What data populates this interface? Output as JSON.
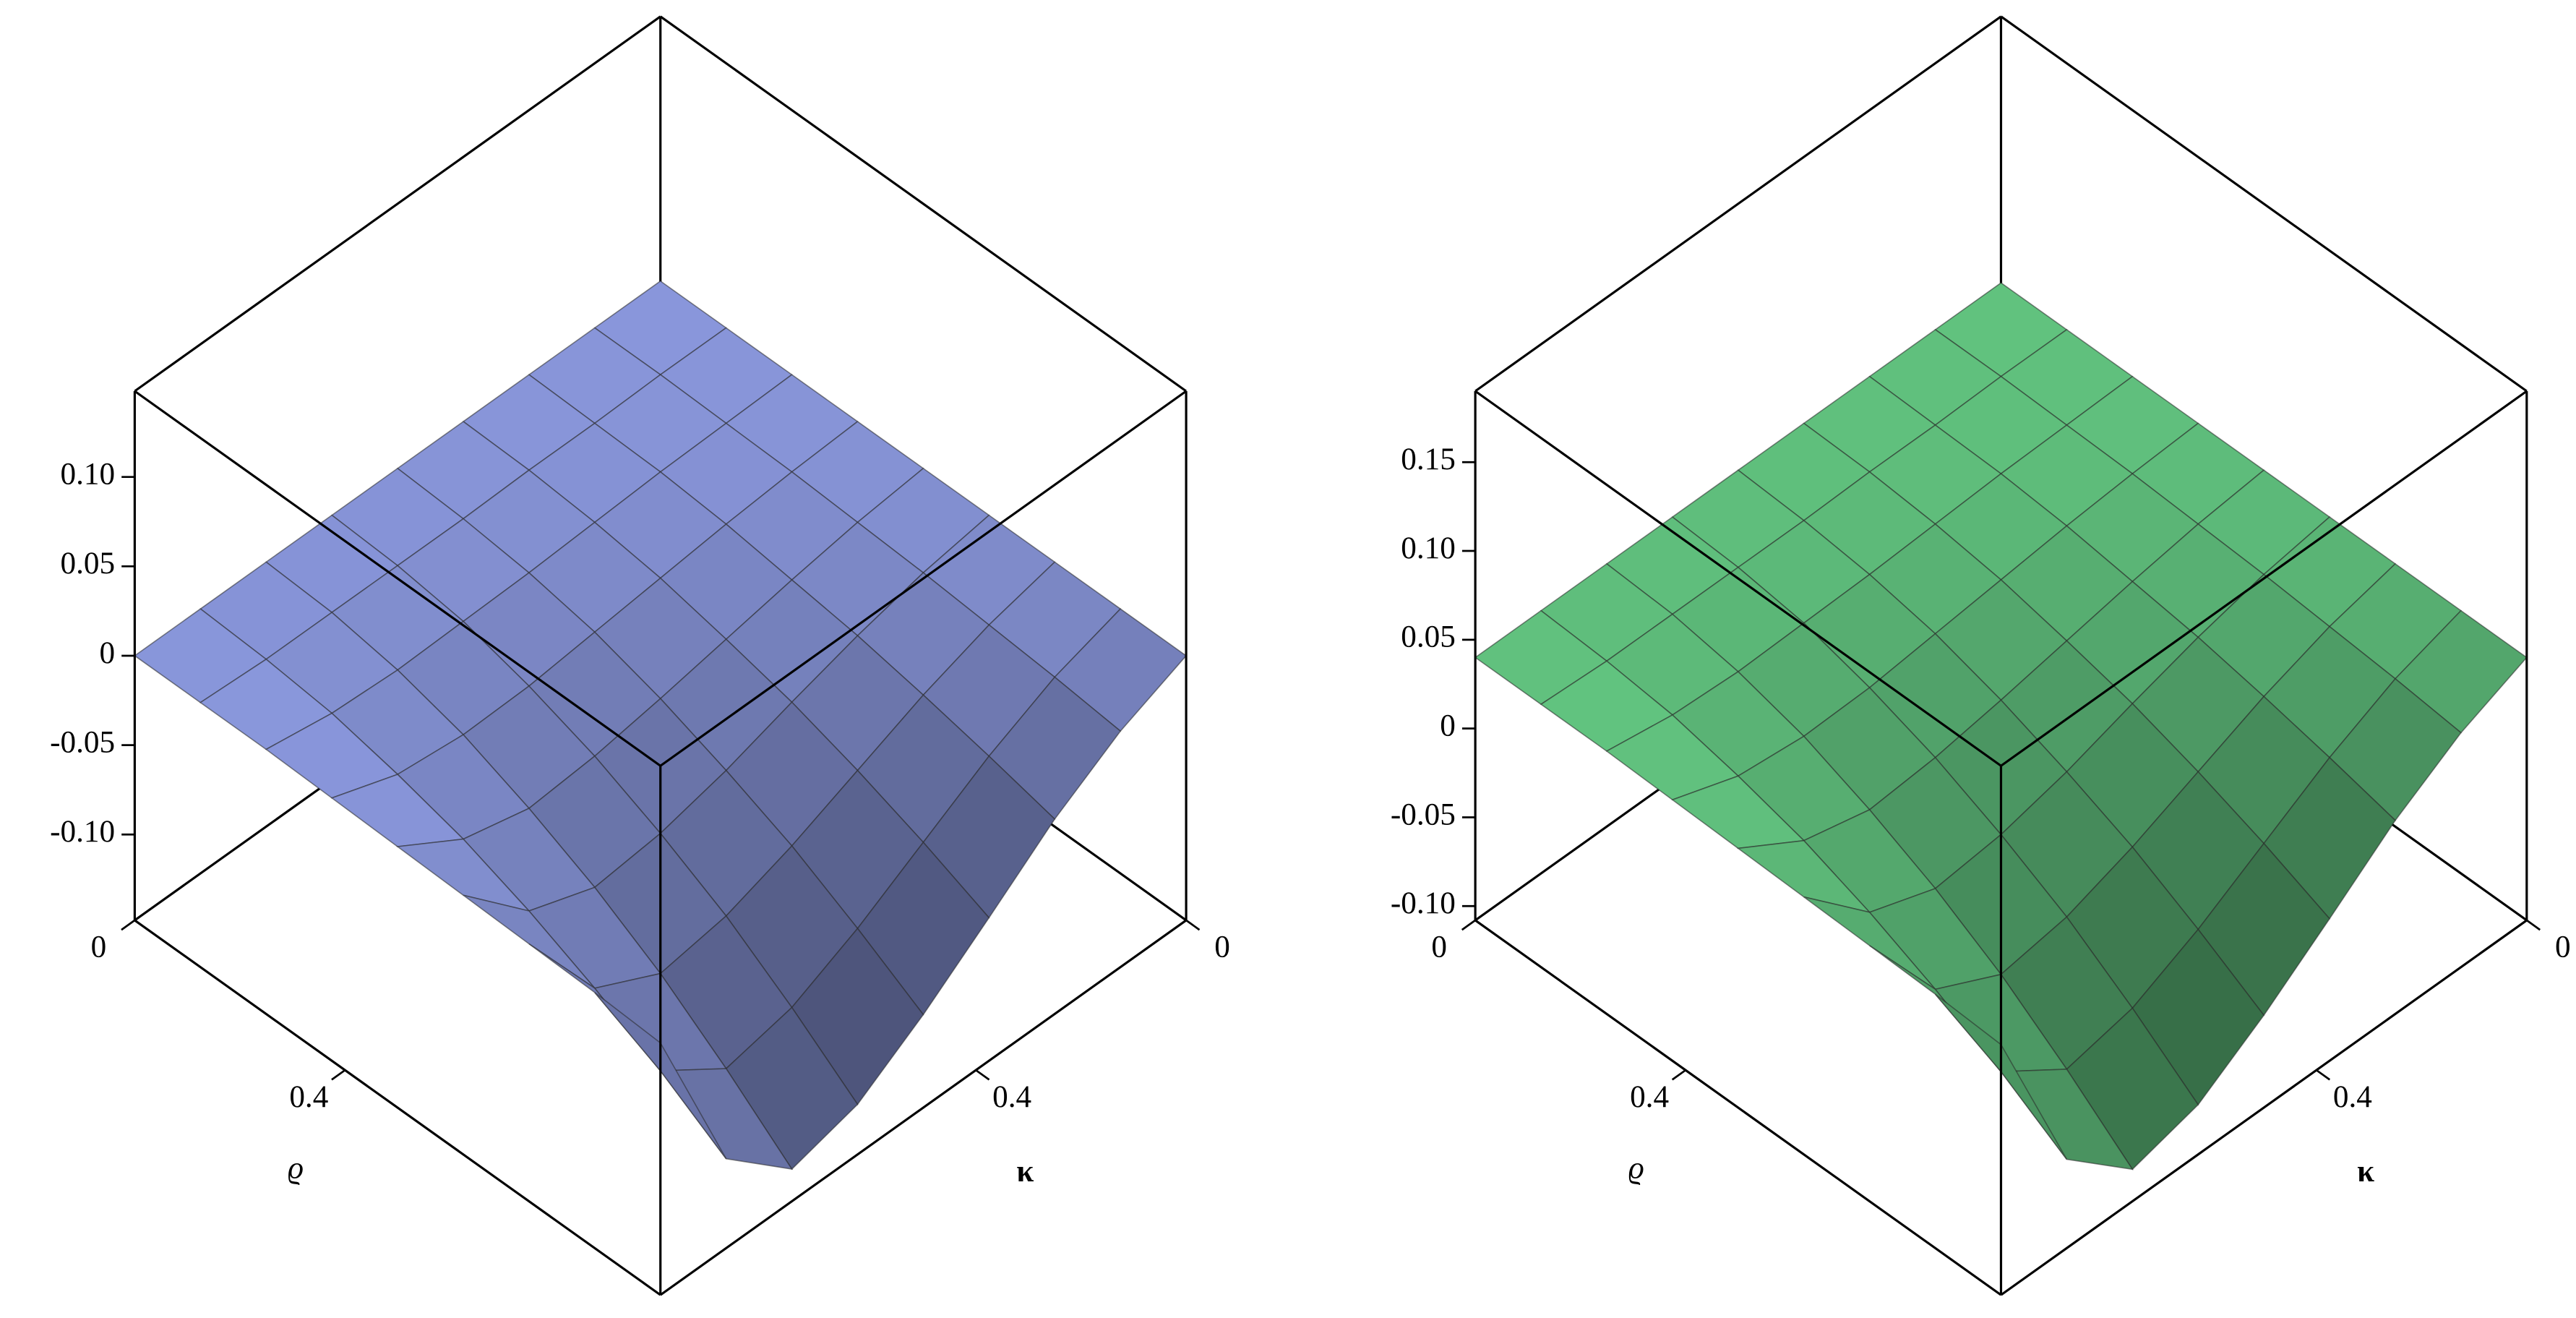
{
  "chart_data": [
    {
      "type": "surface",
      "xlabel": "ϱ",
      "ylabel": "κ",
      "color": "#909ee6",
      "x": [
        0,
        0.125,
        0.25,
        0.375,
        0.5,
        0.625,
        0.75,
        0.875,
        1
      ],
      "y": [
        0,
        0.125,
        0.25,
        0.375,
        0.5,
        0.625,
        0.75,
        0.875,
        1
      ],
      "z": [
        [
          0,
          0,
          0,
          0,
          0,
          0,
          0,
          0,
          0
        ],
        [
          0,
          0,
          -0.001,
          -0.001,
          -0.002,
          -0.002,
          -0.002,
          -0.002,
          0
        ],
        [
          0,
          -0.001,
          -0.002,
          -0.004,
          -0.006,
          -0.007,
          -0.008,
          -0.006,
          0
        ],
        [
          0,
          -0.002,
          -0.005,
          -0.009,
          -0.013,
          -0.017,
          -0.018,
          -0.014,
          -0.001
        ],
        [
          0,
          -0.004,
          -0.01,
          -0.017,
          -0.024,
          -0.03,
          -0.033,
          -0.024,
          -0.002
        ],
        [
          0,
          -0.006,
          -0.015,
          -0.026,
          -0.038,
          -0.047,
          -0.051,
          -0.038,
          -0.003
        ],
        [
          0,
          -0.009,
          -0.022,
          -0.038,
          -0.054,
          -0.067,
          -0.073,
          -0.055,
          -0.004
        ],
        [
          0,
          -0.012,
          -0.03,
          -0.052,
          -0.074,
          -0.092,
          -0.1,
          -0.075,
          -0.005
        ],
        [
          0,
          -0.016,
          -0.039,
          -0.068,
          -0.096,
          -0.12,
          -0.13,
          -0.098,
          -0.007
        ]
      ],
      "xlim": [
        0,
        1
      ],
      "ylim": [
        0,
        1
      ],
      "zlim": [
        -0.148,
        0.148
      ],
      "xticks": [
        0,
        0.4
      ],
      "yticks": [
        0,
        0.4
      ],
      "zticks": [
        {
          "value": 0.1,
          "label": "0.10"
        },
        0.05,
        0,
        -0.05,
        {
          "value": -0.1,
          "label": "-0.10"
        }
      ]
    },
    {
      "type": "surface",
      "xlabel": "ϱ",
      "ylabel": "κ",
      "color": "#66cc85",
      "x": [
        0,
        0.125,
        0.25,
        0.375,
        0.5,
        0.625,
        0.75,
        0.875,
        1
      ],
      "y": [
        0,
        0.125,
        0.25,
        0.375,
        0.5,
        0.625,
        0.75,
        0.875,
        1
      ],
      "z": [
        [
          0.04,
          0.04,
          0.04,
          0.04,
          0.04,
          0.04,
          0.04,
          0.04,
          0.04
        ],
        [
          0.04,
          0.04,
          0.039,
          0.039,
          0.038,
          0.038,
          0.038,
          0.038,
          0.04
        ],
        [
          0.04,
          0.039,
          0.038,
          0.036,
          0.034,
          0.033,
          0.032,
          0.034,
          0.04
        ],
        [
          0.04,
          0.038,
          0.035,
          0.031,
          0.027,
          0.023,
          0.022,
          0.026,
          0.039
        ],
        [
          0.04,
          0.036,
          0.03,
          0.023,
          0.016,
          0.01,
          0.007,
          0.016,
          0.038
        ],
        [
          0.04,
          0.034,
          0.025,
          0.014,
          0.002,
          -0.007,
          -0.011,
          0.002,
          0.037
        ],
        [
          0.04,
          0.031,
          0.018,
          0.002,
          -0.014,
          -0.027,
          -0.033,
          -0.015,
          0.036
        ],
        [
          0.04,
          0.028,
          0.01,
          -0.012,
          -0.034,
          -0.052,
          -0.06,
          -0.035,
          0.035
        ],
        [
          0.04,
          0.024,
          0.001,
          -0.028,
          -0.056,
          -0.08,
          -0.09,
          -0.058,
          0.033
        ]
      ],
      "xlim": [
        0,
        1
      ],
      "ylim": [
        0,
        1
      ],
      "zlim": [
        -0.108,
        0.19
      ],
      "xticks": [
        0,
        0.4
      ],
      "yticks": [
        0,
        0.4
      ],
      "zticks": [
        0.15,
        {
          "value": 0.1,
          "label": "0.10"
        },
        0.05,
        0,
        -0.05,
        {
          "value": -0.1,
          "label": "-0.10"
        }
      ]
    }
  ]
}
